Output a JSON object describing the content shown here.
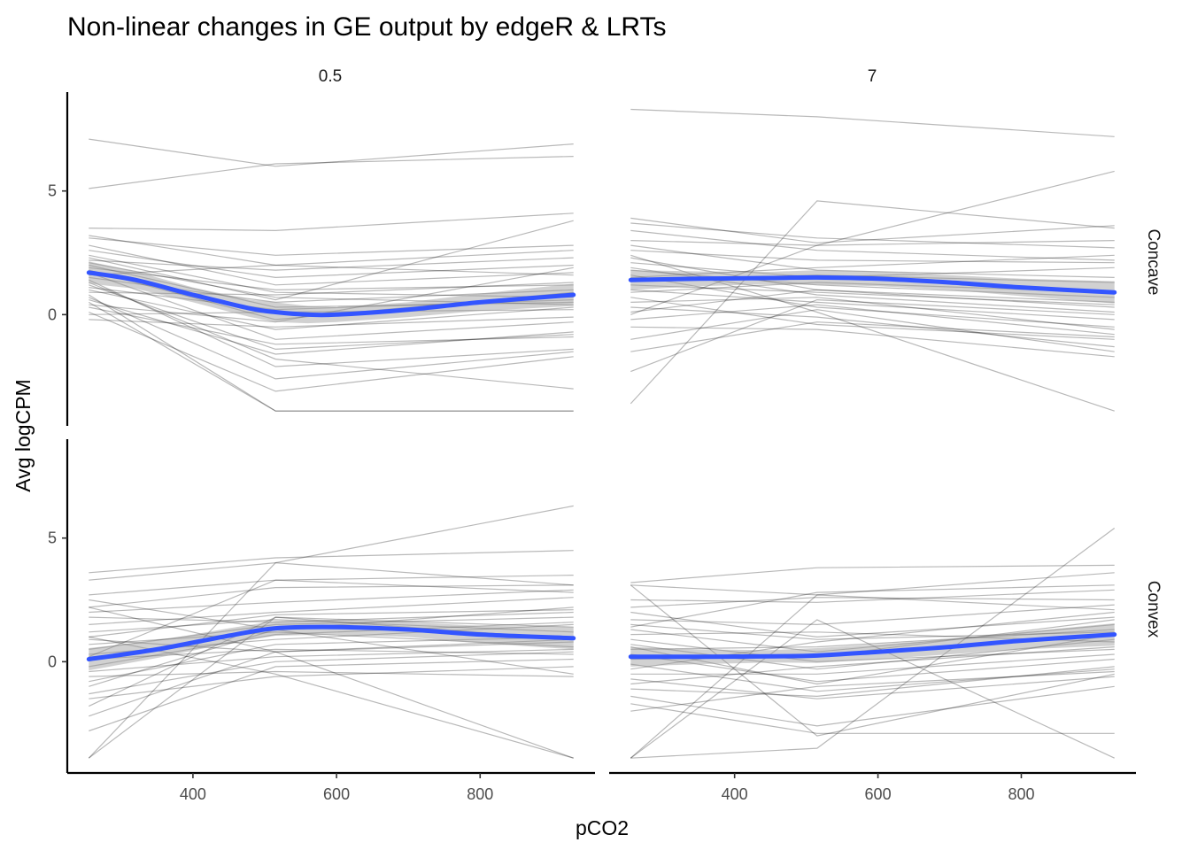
{
  "chart_data": {
    "type": "line",
    "title": "Non-linear changes in GE output by edgeR & LRTs",
    "xlabel": "pCO2",
    "ylabel": "Avg logCPM",
    "x": [
      255,
      515,
      930
    ],
    "xlim": [
      225,
      960
    ],
    "ylim": [
      -4.5,
      9
    ],
    "x_ticks": [
      "400",
      "600",
      "800"
    ],
    "y_ticks": [
      "0",
      "5"
    ],
    "grid": false,
    "smooth_color": "#3355ff",
    "col_facets": [
      "0.5",
      "7"
    ],
    "row_facets": [
      "Concave",
      "Convex"
    ],
    "panels": [
      {
        "col": "0.5",
        "row": "Concave",
        "smooth_x": [
          255,
          320,
          400,
          480,
          515,
          560,
          600,
          700,
          800,
          930
        ],
        "smooth_y": [
          1.7,
          1.4,
          0.8,
          0.25,
          0.1,
          0.0,
          0.0,
          0.2,
          0.5,
          0.8
        ],
        "smooth_se": [
          0.45,
          0.35,
          0.3,
          0.35,
          0.4,
          0.35,
          0.3,
          0.3,
          0.35,
          0.45
        ],
        "genes": [
          [
            7.1,
            6.0,
            6.9
          ],
          [
            5.1,
            6.1,
            6.4
          ],
          [
            3.5,
            3.4,
            4.1
          ],
          [
            3.2,
            2.0,
            1.6
          ],
          [
            3.1,
            2.4,
            2.8
          ],
          [
            2.6,
            1.5,
            2.0
          ],
          [
            2.4,
            0.9,
            0.7
          ],
          [
            2.3,
            0.6,
            3.8
          ],
          [
            2.2,
            1.8,
            2.3
          ],
          [
            2.0,
            0.3,
            0.5
          ],
          [
            1.9,
            1.0,
            1.2
          ],
          [
            1.8,
            -0.2,
            0.9
          ],
          [
            1.7,
            -1.0,
            -0.3
          ],
          [
            1.6,
            2.0,
            2.6
          ],
          [
            1.5,
            0.5,
            1.0
          ],
          [
            1.4,
            -2.1,
            -1.4
          ],
          [
            1.2,
            -1.4,
            -0.8
          ],
          [
            1.1,
            0.2,
            0.6
          ],
          [
            1.0,
            -0.6,
            0.3
          ],
          [
            0.9,
            0.8,
            1.3
          ],
          [
            0.7,
            -2.6,
            -1.5
          ],
          [
            0.6,
            -1.6,
            -0.7
          ],
          [
            0.5,
            -3.9,
            -3.9
          ],
          [
            0.4,
            -0.3,
            1.9
          ],
          [
            0.3,
            -1.2,
            -0.9
          ],
          [
            0.1,
            -3.1,
            -1.7
          ],
          [
            0.0,
            0.1,
            0.2
          ],
          [
            -0.2,
            -0.5,
            -0.1
          ],
          [
            2.8,
            1.2,
            1.7
          ],
          [
            1.3,
            -1.8,
            -3.0
          ],
          [
            0.8,
            -3.9,
            -3.9
          ],
          [
            2.1,
            0.7,
            0.4
          ]
        ]
      },
      {
        "col": "7",
        "row": "Concave",
        "smooth_x": [
          255,
          350,
          450,
          515,
          600,
          700,
          800,
          930
        ],
        "smooth_y": [
          1.4,
          1.45,
          1.48,
          1.5,
          1.45,
          1.3,
          1.1,
          0.9
        ],
        "smooth_se": [
          0.4,
          0.3,
          0.25,
          0.3,
          0.3,
          0.3,
          0.35,
          0.45
        ],
        "genes": [
          [
            8.3,
            8.0,
            7.2
          ],
          [
            3.9,
            2.9,
            3.6
          ],
          [
            3.7,
            3.1,
            2.7
          ],
          [
            3.4,
            2.6,
            2.2
          ],
          [
            3.0,
            2.8,
            5.8
          ],
          [
            2.8,
            1.8,
            1.5
          ],
          [
            2.6,
            2.2,
            2.1
          ],
          [
            2.3,
            1.0,
            0.5
          ],
          [
            2.1,
            1.5,
            1.9
          ],
          [
            1.9,
            0.8,
            0.1
          ],
          [
            1.8,
            1.2,
            0.7
          ],
          [
            1.6,
            0.3,
            -0.5
          ],
          [
            1.4,
            1.6,
            1.3
          ],
          [
            1.2,
            0.9,
            0.4
          ],
          [
            1.0,
            0.5,
            -0.2
          ],
          [
            0.9,
            1.3,
            0.9
          ],
          [
            0.7,
            -0.4,
            -1.0
          ],
          [
            0.5,
            0.7,
            -0.6
          ],
          [
            0.3,
            -0.1,
            -1.3
          ],
          [
            0.1,
            1.0,
            0.3
          ],
          [
            -0.2,
            0.4,
            -0.8
          ],
          [
            -0.5,
            -0.6,
            -1.7
          ],
          [
            -1.0,
            0.2,
            -1.5
          ],
          [
            -1.5,
            -0.3,
            -0.9
          ],
          [
            -2.3,
            0.6,
            0.0
          ],
          [
            -3.6,
            4.6,
            3.5
          ],
          [
            2.4,
            0.1,
            -3.9
          ],
          [
            1.5,
            1.9,
            2.4
          ],
          [
            0.0,
            2.8,
            3.0
          ]
        ]
      },
      {
        "col": "0.5",
        "row": "Convex",
        "smooth_x": [
          255,
          350,
          450,
          515,
          600,
          700,
          800,
          930
        ],
        "smooth_y": [
          0.1,
          0.5,
          1.05,
          1.35,
          1.4,
          1.3,
          1.1,
          0.95
        ],
        "smooth_se": [
          0.45,
          0.35,
          0.3,
          0.3,
          0.3,
          0.3,
          0.35,
          0.45
        ],
        "genes": [
          [
            3.6,
            4.2,
            4.5
          ],
          [
            3.3,
            4.0,
            6.3
          ],
          [
            2.7,
            3.3,
            3.5
          ],
          [
            2.5,
            1.3,
            -0.5
          ],
          [
            2.2,
            3.0,
            3.1
          ],
          [
            2.0,
            2.4,
            2.9
          ],
          [
            1.8,
            1.6,
            2.0
          ],
          [
            1.5,
            2.0,
            2.6
          ],
          [
            1.2,
            1.7,
            1.2
          ],
          [
            1.0,
            1.9,
            2.1
          ],
          [
            0.9,
            0.4,
            0.9
          ],
          [
            0.7,
            1.2,
            0.6
          ],
          [
            0.5,
            1.5,
            1.8
          ],
          [
            0.3,
            0.9,
            1.5
          ],
          [
            0.1,
            0.5,
            0.3
          ],
          [
            -0.2,
            1.1,
            1.6
          ],
          [
            -0.4,
            0.2,
            0.5
          ],
          [
            -0.6,
            -0.4,
            -0.6
          ],
          [
            -0.8,
            0.7,
            1.0
          ],
          [
            -1.0,
            1.3,
            2.2
          ],
          [
            -1.3,
            0.0,
            0.4
          ],
          [
            -1.5,
            -0.6,
            -0.2
          ],
          [
            -1.8,
            1.8,
            1.4
          ],
          [
            -2.2,
            0.4,
            0.8
          ],
          [
            -2.8,
            -0.2,
            0.1
          ],
          [
            -3.9,
            1.8,
            0.9
          ],
          [
            -3.9,
            4.0,
            3.1
          ],
          [
            2.2,
            0.4,
            -3.9
          ],
          [
            1.0,
            -0.5,
            -3.9
          ],
          [
            0.2,
            3.3,
            2.8
          ]
        ]
      },
      {
        "col": "7",
        "row": "Convex",
        "smooth_x": [
          255,
          350,
          450,
          515,
          600,
          700,
          800,
          930
        ],
        "smooth_y": [
          0.2,
          0.2,
          0.22,
          0.25,
          0.4,
          0.6,
          0.85,
          1.1
        ],
        "smooth_se": [
          0.4,
          0.3,
          0.25,
          0.3,
          0.3,
          0.3,
          0.35,
          0.45
        ],
        "genes": [
          [
            3.2,
            3.8,
            3.9
          ],
          [
            3.1,
            2.7,
            3.6
          ],
          [
            2.5,
            2.4,
            2.9
          ],
          [
            2.2,
            2.6,
            2.5
          ],
          [
            2.0,
            1.0,
            1.8
          ],
          [
            1.7,
            1.5,
            2.3
          ],
          [
            1.5,
            0.9,
            1.2
          ],
          [
            1.3,
            0.4,
            1.5
          ],
          [
            1.1,
            1.2,
            0.8
          ],
          [
            0.9,
            0.0,
            0.5
          ],
          [
            0.7,
            -0.3,
            0.9
          ],
          [
            0.5,
            0.6,
            1.3
          ],
          [
            0.3,
            -0.8,
            0.1
          ],
          [
            0.1,
            0.2,
            1.7
          ],
          [
            -0.1,
            -1.2,
            -0.3
          ],
          [
            -0.3,
            0.8,
            2.0
          ],
          [
            -0.5,
            -0.5,
            0.3
          ],
          [
            -0.7,
            -1.5,
            -0.6
          ],
          [
            -0.9,
            -0.2,
            0.6
          ],
          [
            -1.1,
            -1.4,
            -0.2
          ],
          [
            -1.4,
            -2.6,
            -1.0
          ],
          [
            -1.7,
            -2.9,
            -2.9
          ],
          [
            -2.0,
            -1.0,
            -0.4
          ],
          [
            -3.9,
            2.7,
            2.1
          ],
          [
            -3.9,
            1.7,
            -3.9
          ],
          [
            -3.9,
            -3.5,
            5.4
          ],
          [
            3.1,
            -3.0,
            -0.5
          ],
          [
            1.4,
            2.8,
            3.1
          ],
          [
            0.6,
            -0.9,
            1.1
          ]
        ]
      }
    ]
  }
}
